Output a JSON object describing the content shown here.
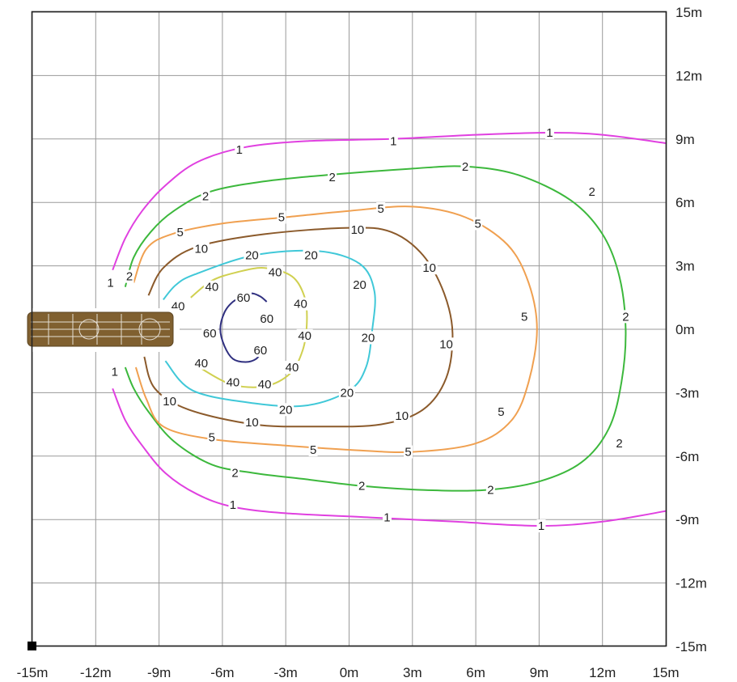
{
  "chart_data": {
    "type": "contour",
    "xlim": [
      -15,
      15
    ],
    "ylim": [
      -15,
      15
    ],
    "grid": true,
    "x_ticks": [
      {
        "value": -15,
        "label": "-15m"
      },
      {
        "value": -12,
        "label": "-12m"
      },
      {
        "value": -9,
        "label": "-9m"
      },
      {
        "value": -6,
        "label": "-6m"
      },
      {
        "value": -3,
        "label": "-3m"
      },
      {
        "value": 0,
        "label": "0m"
      },
      {
        "value": 3,
        "label": "3m"
      },
      {
        "value": 6,
        "label": "6m"
      },
      {
        "value": 9,
        "label": "9m"
      },
      {
        "value": 12,
        "label": "12m"
      },
      {
        "value": 15,
        "label": "15m"
      }
    ],
    "y_ticks": [
      {
        "value": 15,
        "label": "15m"
      },
      {
        "value": 12,
        "label": "12m"
      },
      {
        "value": 9,
        "label": "9m"
      },
      {
        "value": 6,
        "label": "6m"
      },
      {
        "value": 3,
        "label": "3m"
      },
      {
        "value": 0,
        "label": "0m"
      },
      {
        "value": -3,
        "label": "-3m"
      },
      {
        "value": -6,
        "label": "-6m"
      },
      {
        "value": -9,
        "label": "-9m"
      },
      {
        "value": -12,
        "label": "-12m"
      },
      {
        "value": -15,
        "label": "-15m"
      }
    ],
    "contours": [
      {
        "level": 1,
        "label": "1",
        "color": "#e040e0",
        "closed": false,
        "points": [
          [
            -11.2,
            2.8
          ],
          [
            -10.6,
            4.3
          ],
          [
            -9.8,
            5.6
          ],
          [
            -8.7,
            6.8
          ],
          [
            -7.2,
            7.9
          ],
          [
            -5,
            8.6
          ],
          [
            -2,
            8.9
          ],
          [
            2,
            9
          ],
          [
            6,
            9.2
          ],
          [
            9.5,
            9.3
          ],
          [
            12,
            9.2
          ],
          [
            15,
            8.8
          ]
        ],
        "labels": [
          [
            -5.2,
            8.5
          ],
          [
            2.1,
            8.9
          ],
          [
            9.5,
            9.3
          ],
          [
            -11.3,
            2.2
          ]
        ]
      },
      {
        "level": 1,
        "label": "1",
        "color": "#e040e0",
        "closed": false,
        "points": [
          [
            -11.2,
            -2.8
          ],
          [
            -10.6,
            -4.3
          ],
          [
            -9.8,
            -5.5
          ],
          [
            -8.7,
            -6.8
          ],
          [
            -7.2,
            -7.8
          ],
          [
            -5.5,
            -8.4
          ],
          [
            -3,
            -8.7
          ],
          [
            1,
            -8.9
          ],
          [
            5,
            -9.1
          ],
          [
            9,
            -9.3
          ],
          [
            12,
            -9.1
          ],
          [
            15,
            -8.6
          ]
        ],
        "labels": [
          [
            -5.5,
            -8.3
          ],
          [
            1.8,
            -8.9
          ],
          [
            9.1,
            -9.3
          ],
          [
            -11.1,
            -2
          ]
        ]
      },
      {
        "level": 2,
        "label": "2",
        "color": "#3cb83c",
        "closed": false,
        "points": [
          [
            -10.6,
            2
          ],
          [
            -10.2,
            3.4
          ],
          [
            -9.4,
            4.6
          ],
          [
            -8.3,
            5.6
          ],
          [
            -6.6,
            6.5
          ],
          [
            -4,
            7
          ],
          [
            -1,
            7.3
          ],
          [
            3,
            7.6
          ],
          [
            5.5,
            7.7
          ],
          [
            8,
            7.3
          ],
          [
            10.5,
            6.1
          ],
          [
            12,
            4.5
          ],
          [
            12.8,
            2.5
          ],
          [
            13.1,
            0
          ],
          [
            12.9,
            -2.5
          ],
          [
            12.3,
            -4.7
          ],
          [
            11,
            -6.3
          ],
          [
            9,
            -7.2
          ],
          [
            6.5,
            -7.6
          ],
          [
            3.5,
            -7.6
          ],
          [
            0.5,
            -7.4
          ],
          [
            -2,
            -7.1
          ],
          [
            -4.5,
            -6.8
          ],
          [
            -6.5,
            -6.4
          ],
          [
            -8.3,
            -5.3
          ],
          [
            -9.5,
            -3.9
          ],
          [
            -10.2,
            -2.8
          ],
          [
            -10.6,
            -1.8
          ]
        ],
        "labels": [
          [
            -6.8,
            6.3
          ],
          [
            -0.8,
            7.2
          ],
          [
            5.5,
            7.7
          ],
          [
            11.5,
            6.5
          ],
          [
            13.1,
            0.6
          ],
          [
            12.8,
            -5.4
          ],
          [
            6.7,
            -7.6
          ],
          [
            0.6,
            -7.4
          ],
          [
            -5.4,
            -6.8
          ],
          [
            -10.4,
            2.5
          ]
        ]
      },
      {
        "level": 5,
        "label": "5",
        "color": "#f0a050",
        "closed": false,
        "points": [
          [
            -10.2,
            2.2
          ],
          [
            -9.6,
            3.8
          ],
          [
            -8.4,
            4.5
          ],
          [
            -6,
            5
          ],
          [
            -3,
            5.3
          ],
          [
            0,
            5.6
          ],
          [
            3,
            5.8
          ],
          [
            5.5,
            5.3
          ],
          [
            7.5,
            4
          ],
          [
            8.5,
            2.2
          ],
          [
            8.9,
            0
          ],
          [
            8.5,
            -2.5
          ],
          [
            7.7,
            -4.3
          ],
          [
            6,
            -5.4
          ],
          [
            3,
            -5.8
          ],
          [
            0,
            -5.7
          ],
          [
            -3,
            -5.5
          ],
          [
            -6.5,
            -5.2
          ],
          [
            -8.8,
            -4.6
          ],
          [
            -9.6,
            -3.3
          ],
          [
            -10.1,
            -1.8
          ]
        ],
        "labels": [
          [
            -8,
            4.6
          ],
          [
            -3.2,
            5.3
          ],
          [
            1.5,
            5.7
          ],
          [
            6.1,
            5
          ],
          [
            8.3,
            0.6
          ],
          [
            7.2,
            -3.9
          ],
          [
            2.8,
            -5.8
          ],
          [
            -1.7,
            -5.7
          ],
          [
            -6.5,
            -5.1
          ]
        ]
      },
      {
        "level": 10,
        "label": "10",
        "color": "#8b5a2b",
        "closed": false,
        "points": [
          [
            -9.5,
            1.6
          ],
          [
            -8.8,
            2.9
          ],
          [
            -7.2,
            3.9
          ],
          [
            -4,
            4.5
          ],
          [
            0,
            4.8
          ],
          [
            2,
            4.6
          ],
          [
            3.5,
            3.5
          ],
          [
            4.5,
            1.7
          ],
          [
            4.9,
            -0.2
          ],
          [
            4.6,
            -2.3
          ],
          [
            3.5,
            -3.8
          ],
          [
            1.5,
            -4.5
          ],
          [
            -1.5,
            -4.6
          ],
          [
            -4.5,
            -4.5
          ],
          [
            -7.6,
            -3.8
          ],
          [
            -9.2,
            -2.8
          ],
          [
            -9.7,
            -1.3
          ]
        ],
        "labels": [
          [
            -7,
            3.8
          ],
          [
            0.4,
            4.7
          ],
          [
            3.8,
            2.9
          ],
          [
            4.6,
            -0.7
          ],
          [
            2.5,
            -4.1
          ],
          [
            -4.6,
            -4.4
          ],
          [
            -8.5,
            -3.4
          ]
        ]
      },
      {
        "level": 20,
        "label": "20",
        "color": "#40c8d8",
        "closed": false,
        "points": [
          [
            -8.8,
            1.4
          ],
          [
            -8.2,
            2.1
          ],
          [
            -7.3,
            2.6
          ],
          [
            -4.5,
            3.5
          ],
          [
            -1.5,
            3.7
          ],
          [
            0.5,
            3.1
          ],
          [
            1.2,
            1.8
          ],
          [
            1.1,
            0
          ],
          [
            0.8,
            -1.8
          ],
          [
            0,
            -2.9
          ],
          [
            -2,
            -3.6
          ],
          [
            -4.5,
            -3.5
          ],
          [
            -7.4,
            -2.9
          ],
          [
            -8.7,
            -1.5
          ]
        ],
        "labels": [
          [
            -4.6,
            3.5
          ],
          [
            -1.8,
            3.5
          ],
          [
            0.5,
            2.1
          ],
          [
            0.9,
            -0.4
          ],
          [
            -0.1,
            -3
          ],
          [
            -3,
            -3.8
          ]
        ]
      },
      {
        "level": 40,
        "label": "40",
        "color": "#d0d050",
        "closed": false,
        "points": [
          [
            -7.5,
            1.5
          ],
          [
            -6.5,
            2.3
          ],
          [
            -5.3,
            2.7
          ],
          [
            -4,
            2.9
          ],
          [
            -2.7,
            2.5
          ],
          [
            -2.1,
            1.5
          ],
          [
            -2,
            0.3
          ],
          [
            -2.2,
            -1
          ],
          [
            -2.8,
            -2.1
          ],
          [
            -4,
            -2.7
          ],
          [
            -5.6,
            -2.6
          ],
          [
            -7.1,
            -1.8
          ]
        ],
        "labels": [
          [
            -6.5,
            2
          ],
          [
            -3.5,
            2.7
          ],
          [
            -2.3,
            1.2
          ],
          [
            -2.1,
            -0.3
          ],
          [
            -2.7,
            -1.8
          ],
          [
            -4,
            -2.6
          ],
          [
            -5.5,
            -2.5
          ],
          [
            -7,
            -1.6
          ],
          [
            -8.1,
            1.1
          ]
        ]
      },
      {
        "level": 60,
        "label": "60",
        "color": "#303080",
        "closed": false,
        "points": [
          [
            -3.9,
            1.3
          ],
          [
            -4.2,
            1.55
          ],
          [
            -4.6,
            1.7
          ],
          [
            -5,
            1.55
          ],
          [
            -5.5,
            1.3
          ],
          [
            -5.9,
            0.8
          ],
          [
            -6.1,
            0
          ],
          [
            -5.9,
            -0.8
          ],
          [
            -5.5,
            -1.4
          ],
          [
            -4.9,
            -1.55
          ],
          [
            -4.4,
            -1.4
          ],
          [
            -4.1,
            -1
          ]
        ],
        "labels": [
          [
            -5,
            1.5
          ],
          [
            -3.9,
            0.5
          ],
          [
            -6.6,
            -0.2
          ],
          [
            -4.2,
            -1
          ]
        ]
      }
    ],
    "source_marker": {
      "x": -15,
      "y": -15
    }
  }
}
